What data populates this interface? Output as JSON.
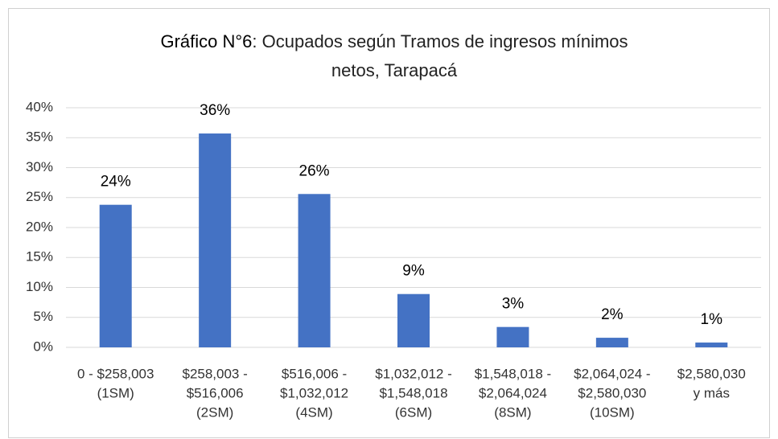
{
  "chart_data": {
    "type": "bar",
    "title_bold": "Gráfico N°6",
    "title": ": Ocupados según Tramos de ingresos mínimos netos, Tarapacá",
    "categories": [
      [
        "0 - $258,003",
        "(1SM)"
      ],
      [
        "$258,003 -",
        "$516,006",
        "(2SM)"
      ],
      [
        "$516,006 -",
        "$1,032,012",
        "(4SM)"
      ],
      [
        "$1,032,012 -",
        "$1,548,018",
        "(6SM)"
      ],
      [
        "$1,548,018 -",
        "$2,064,024",
        "(8SM)"
      ],
      [
        "$2,064,024 -",
        "$2,580,030",
        "(10SM)"
      ],
      [
        "$2,580,030",
        "y más"
      ]
    ],
    "values": [
      23.8,
      35.7,
      25.6,
      8.9,
      3.4,
      1.6,
      0.8
    ],
    "value_labels": [
      "24%",
      "36%",
      "26%",
      "9%",
      "3%",
      "2%",
      "1%"
    ],
    "color": "#4472c4",
    "ylim": [
      0,
      40
    ],
    "yticks": [
      {
        "value": 0,
        "label": "0%"
      },
      {
        "value": 5,
        "label": "5%"
      },
      {
        "value": 10,
        "label": "10%"
      },
      {
        "value": 15,
        "label": "15%"
      },
      {
        "value": 20,
        "label": "20%"
      },
      {
        "value": 25,
        "label": "25%"
      },
      {
        "value": 30,
        "label": "30%"
      },
      {
        "value": 35,
        "label": "35%"
      },
      {
        "value": 40,
        "label": "40%"
      }
    ],
    "grid": true
  }
}
